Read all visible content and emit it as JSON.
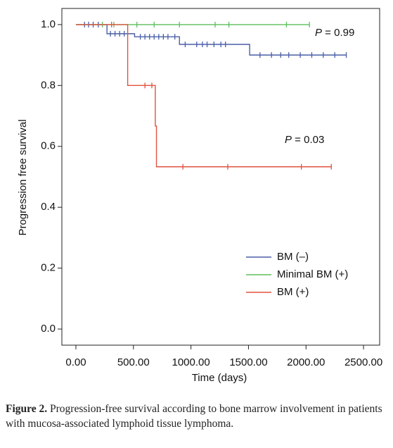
{
  "chart_data": {
    "type": "survival",
    "x_label": "Time (days)",
    "y_label": "Progression free survival",
    "xlim": [
      -122,
      2640
    ],
    "ylim": [
      -0.053,
      1.053
    ],
    "xticks": [
      {
        "value": 0,
        "label": "0.00"
      },
      {
        "value": 500,
        "label": "500.00"
      },
      {
        "value": 1000,
        "label": "1000.00"
      },
      {
        "value": 1500,
        "label": "1500.00"
      },
      {
        "value": 2000,
        "label": "2000.00"
      },
      {
        "value": 2500,
        "label": "2500.00"
      }
    ],
    "yticks": [
      {
        "value": 0,
        "label": "0.0"
      },
      0.2,
      0.4,
      0.6,
      0.8,
      {
        "value": 1,
        "label": "1.0"
      }
    ],
    "series": [
      {
        "name": "BM (–)",
        "color": "#4a5fa8",
        "x": [
          0,
          270,
          510,
          900,
          1510,
          2353
        ],
        "values": [
          1,
          0.97,
          0.96,
          0.935,
          0.9,
          0.9
        ],
        "censored_x": [
          75,
          110,
          150,
          195,
          300,
          340,
          380,
          420,
          560,
          600,
          640,
          680,
          720,
          760,
          800,
          860,
          950,
          1050,
          1100,
          1140,
          1200,
          1260,
          1300,
          1600,
          1700,
          1780,
          1850,
          1950,
          2050,
          2150,
          2250,
          2350
        ],
        "censored_values": [
          1,
          1,
          1,
          1,
          0.97,
          0.97,
          0.97,
          0.97,
          0.96,
          0.96,
          0.96,
          0.96,
          0.96,
          0.96,
          0.96,
          0.96,
          0.935,
          0.935,
          0.935,
          0.935,
          0.935,
          0.935,
          0.935,
          0.9,
          0.9,
          0.9,
          0.9,
          0.9,
          0.9,
          0.9,
          0.9,
          0.9
        ]
      },
      {
        "name": "Minimal BM (+)",
        "color": "#5cbf5c",
        "x": [
          0,
          2030
        ],
        "values": [
          1,
          1
        ],
        "censored_x": [
          230,
          330,
          530,
          680,
          900,
          1210,
          1330,
          1830,
          2030
        ],
        "censored_values": [
          1,
          1,
          1,
          1,
          1,
          1,
          1,
          1,
          1
        ]
      },
      {
        "name": "BM (+)",
        "color": "#e0533f",
        "x": [
          0,
          450,
          690,
          700,
          2220
        ],
        "values": [
          1,
          0.8,
          0.667,
          0.533,
          0.533
        ],
        "censored_x": [
          310,
          600,
          660,
          930,
          1320,
          1960,
          2220
        ],
        "censored_values": [
          1,
          0.8,
          0.8,
          0.533,
          0.533,
          0.533,
          0.533
        ]
      }
    ],
    "annotations": [
      {
        "italic": "P",
        "text": " = 0.99"
      },
      {
        "italic": "P",
        "text": " = 0.03"
      }
    ]
  },
  "caption": {
    "label": "Figure 2.",
    "text": "Progression-free survival according to bone marrow involvement in patients with mucosa-associated lymphoid tissue lymphoma."
  }
}
